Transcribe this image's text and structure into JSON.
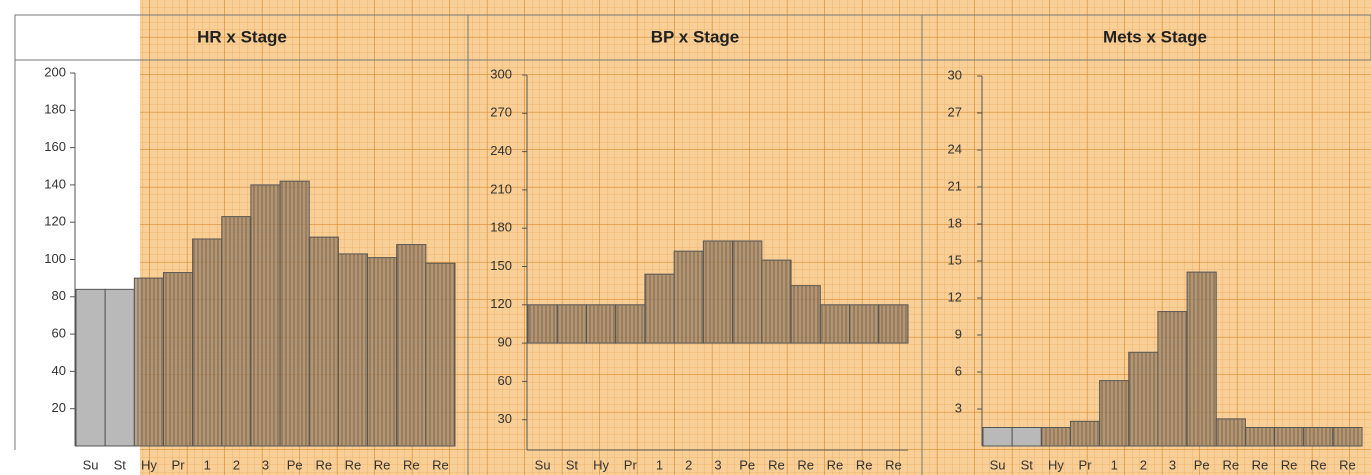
{
  "chart_data": [
    {
      "type": "bar",
      "title": "HR x Stage",
      "categories": [
        "Su",
        "St",
        "Hy",
        "Pr",
        "1",
        "2",
        "3",
        "Pe",
        "Re",
        "Re",
        "Re",
        "Re",
        "Re"
      ],
      "values": [
        84,
        84,
        90,
        93,
        111,
        123,
        140,
        142,
        112,
        103,
        101,
        108,
        98
      ],
      "color": "#9c8468",
      "ylim": [
        0,
        200
      ],
      "yticks": [
        20,
        40,
        60,
        80,
        100,
        120,
        140,
        160,
        180,
        200
      ]
    },
    {
      "type": "range-bar",
      "title": "BP x Stage",
      "categories": [
        "Su",
        "St",
        "Hy",
        "Pr",
        "1",
        "2",
        "3",
        "Pe",
        "Re",
        "Re",
        "Re",
        "Re",
        "Re"
      ],
      "low": [
        90,
        90,
        90,
        90,
        90,
        90,
        90,
        90,
        90,
        90,
        90,
        90,
        90
      ],
      "high": [
        120,
        120,
        120,
        120,
        144,
        162,
        170,
        170,
        155,
        135,
        120,
        120,
        120
      ],
      "color": "#9c8468",
      "ylim": [
        0,
        300
      ],
      "yticks": [
        30,
        60,
        90,
        120,
        150,
        180,
        210,
        240,
        270,
        300
      ]
    },
    {
      "type": "bar",
      "title": "Mets x Stage",
      "categories": [
        "Su",
        "St",
        "Hy",
        "Pr",
        "1",
        "2",
        "3",
        "Pe",
        "Re",
        "Re",
        "Re",
        "Re",
        "Re"
      ],
      "values": [
        1.5,
        1.5,
        1.5,
        2,
        5.3,
        7.6,
        10.9,
        14.1,
        2.2,
        1.5,
        1.5,
        1.5,
        1.5
      ],
      "color": "#9c8468",
      "ylim": [
        0,
        30
      ],
      "yticks": [
        3,
        6,
        9,
        12,
        15,
        18,
        21,
        24,
        27,
        30
      ]
    }
  ]
}
